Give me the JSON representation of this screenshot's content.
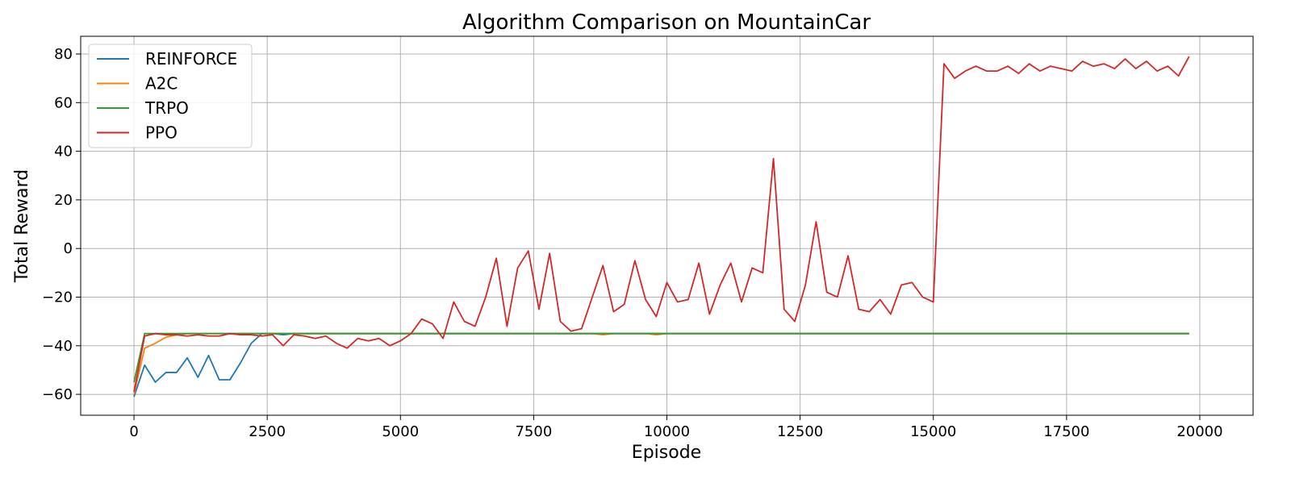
{
  "chart_data": {
    "type": "line",
    "title": "Algorithm Comparison on MountainCar",
    "x_label": "Episode",
    "y_label": "Total Reward",
    "x": [
      0,
      200,
      400,
      600,
      800,
      1000,
      1200,
      1400,
      1600,
      1800,
      2000,
      2200,
      2400,
      2600,
      2800,
      3000,
      3200,
      3400,
      3600,
      3800,
      4000,
      4200,
      4400,
      4600,
      4800,
      5000,
      5200,
      5400,
      5600,
      5800,
      6000,
      6200,
      6400,
      6600,
      6800,
      7000,
      7200,
      7400,
      7600,
      7800,
      8000,
      8200,
      8400,
      8600,
      8800,
      9000,
      9200,
      9400,
      9600,
      9800,
      10000,
      10200,
      10400,
      10600,
      10800,
      11000,
      11200,
      11400,
      11600,
      11800,
      12000,
      12200,
      12400,
      12600,
      12800,
      13000,
      13200,
      13400,
      13600,
      13800,
      14000,
      14200,
      14400,
      14600,
      14800,
      15000,
      15200,
      15400,
      15600,
      15800,
      16000,
      16200,
      16400,
      16600,
      16800,
      17000,
      17200,
      17400,
      17600,
      17800,
      18000,
      18200,
      18400,
      18600,
      18800,
      19000,
      19200,
      19400,
      19600,
      19800
    ],
    "series": [
      {
        "name": "REINFORCE",
        "color": "#1f77b4",
        "values": [
          -61,
          -48,
          -55,
          -51,
          -51,
          -45,
          -53,
          -44,
          -54,
          -54,
          -47,
          -39,
          -35,
          -35,
          -35.5,
          -35,
          -35,
          -35,
          -35,
          -35,
          -35,
          -35,
          -35,
          -35,
          -35,
          -35,
          -35,
          -35,
          -35,
          -35,
          -35,
          -35,
          -35,
          -35,
          -35,
          -35,
          -35,
          -35,
          -35,
          -35,
          -35,
          -35,
          -35,
          -35,
          -35,
          -35,
          -35,
          -35,
          -35,
          -35,
          -35,
          -35,
          -35,
          -35,
          -35,
          -35,
          -35,
          -35,
          -35,
          -35,
          -35,
          -35,
          -35,
          -35,
          -35,
          -35,
          -35,
          -35,
          -35,
          -35,
          -35,
          -35,
          -35,
          -35,
          -35,
          -35,
          -35,
          -35,
          -35,
          -35,
          -35,
          -35,
          -35,
          -35,
          -35,
          -35,
          -35,
          -35,
          -35,
          -35,
          -35,
          -35,
          -35,
          -35,
          -35,
          -35,
          -35,
          -35,
          -35,
          -35
        ]
      },
      {
        "name": "A2C",
        "color": "#ff7f0e",
        "values": [
          -60,
          -41,
          -39,
          -36.5,
          -35.5,
          -35,
          -35,
          -35,
          -35,
          -35,
          -35,
          -35,
          -35,
          -35,
          -35,
          -35,
          -35,
          -35,
          -35,
          -35,
          -35,
          -35,
          -35,
          -35,
          -35,
          -35,
          -35,
          -35,
          -35,
          -35,
          -35,
          -35,
          -35,
          -35,
          -35,
          -35,
          -35,
          -35,
          -35,
          -35,
          -35,
          -35,
          -35,
          -35,
          -35.5,
          -35,
          -35,
          -35,
          -35,
          -35.5,
          -35,
          -35,
          -35,
          -35,
          -35,
          -35,
          -35,
          -35,
          -35,
          -35,
          -35,
          -35,
          -35,
          -35,
          -35,
          -35,
          -35,
          -35,
          -35,
          -35,
          -35,
          -35,
          -35,
          -35,
          -35,
          -35,
          -35,
          -35,
          -35,
          -35,
          -35,
          -35,
          -35,
          -35,
          -35,
          -35,
          -35,
          -35,
          -35,
          -35,
          -35,
          -35,
          -35,
          -35,
          -35,
          -35,
          -35,
          -35,
          -35,
          -35
        ]
      },
      {
        "name": "TRPO",
        "color": "#2ca02c",
        "values": [
          -55,
          -35,
          -35,
          -35,
          -35,
          -35,
          -35,
          -35,
          -35,
          -35,
          -35,
          -35,
          -35,
          -35,
          -35,
          -35,
          -35,
          -35,
          -35,
          -35,
          -35,
          -35,
          -35,
          -35,
          -35,
          -35,
          -35,
          -35,
          -35,
          -35,
          -35,
          -35,
          -35,
          -35,
          -35,
          -35,
          -35,
          -35,
          -35,
          -35,
          -35,
          -35,
          -35,
          -35,
          -35,
          -35,
          -35,
          -35,
          -35,
          -35,
          -35,
          -35,
          -35,
          -35,
          -35,
          -35,
          -35,
          -35,
          -35,
          -35,
          -35,
          -35,
          -35,
          -35,
          -35,
          -35,
          -35,
          -35,
          -35,
          -35,
          -35,
          -35,
          -35,
          -35,
          -35,
          -35,
          -35,
          -35,
          -35,
          -35,
          -35,
          -35,
          -35,
          -35,
          -35,
          -35,
          -35,
          -35,
          -35,
          -35,
          -35,
          -35,
          -35,
          -35,
          -35,
          -35,
          -35,
          -35,
          -35,
          -35
        ]
      },
      {
        "name": "PPO",
        "color": "#d62728",
        "values": [
          -59,
          -36,
          -35,
          -35.5,
          -35.5,
          -36,
          -35.5,
          -36,
          -36,
          -35,
          -35.5,
          -35.5,
          -36,
          -35.5,
          -40,
          -35.5,
          -36,
          -37,
          -36,
          -39,
          -41,
          -37,
          -38,
          -37,
          -40,
          -38,
          -35,
          -29,
          -31,
          -37,
          -22,
          -30,
          -32,
          -20,
          -4,
          -32,
          -8,
          -1,
          -25,
          -2,
          -30,
          -34,
          -33,
          -20,
          -7,
          -26,
          -23,
          -5,
          -21,
          -28,
          -14,
          -22,
          -21,
          -6,
          -27,
          -15,
          -6,
          -22,
          -8,
          -10,
          37,
          -25,
          -30,
          -15,
          11,
          -18,
          -20,
          -3,
          -25,
          -26,
          -21,
          -27,
          -15,
          -14,
          -20,
          -22,
          76,
          70,
          73,
          75,
          73,
          73,
          75,
          72,
          76,
          73,
          75,
          74,
          73,
          77,
          75,
          76,
          74,
          78,
          74,
          77,
          73,
          75,
          71,
          79
        ]
      }
    ],
    "xlim": [
      -1000,
      21000
    ],
    "ylim": [
      -68.6,
      87.3
    ],
    "xticks": [
      0,
      2500,
      5000,
      7500,
      10000,
      12500,
      15000,
      17500,
      20000
    ],
    "yticks": [
      {
        "value": -60,
        "label": "−60"
      },
      {
        "value": -40,
        "label": "−40"
      },
      {
        "value": -20,
        "label": "−20"
      },
      0,
      20,
      40,
      60,
      80
    ],
    "grid": true,
    "legend": "upper left"
  }
}
